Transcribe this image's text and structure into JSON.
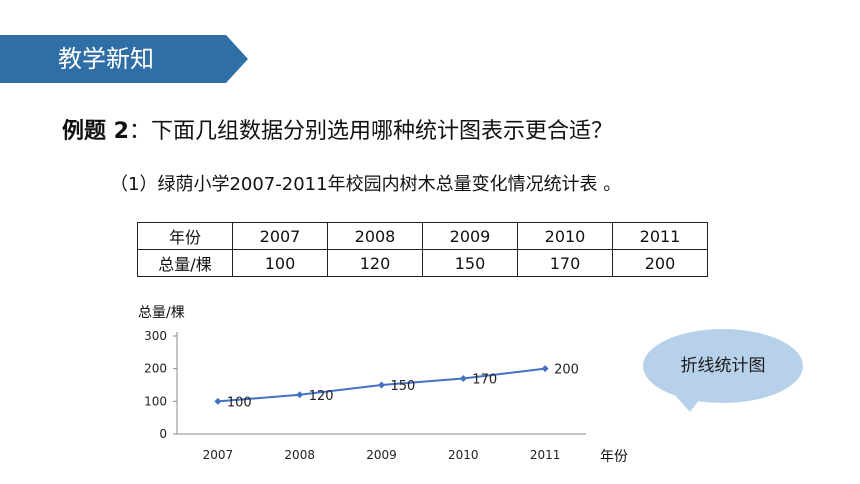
{
  "banner": {
    "title": "教学新知"
  },
  "question": {
    "label": "例题 2",
    "separator": "：",
    "text": "下面几组数据分别选用哪种统计图表示更合适？"
  },
  "sub_question": "（1）绿荫小学2007-2011年校园内树木总量变化情况统计表 。",
  "table": {
    "header_label": "年份",
    "row_label": "总量/棵",
    "years": [
      "2007",
      "2008",
      "2009",
      "2010",
      "2011"
    ],
    "values": [
      "100",
      "120",
      "150",
      "170",
      "200"
    ]
  },
  "chart_data": {
    "type": "line",
    "ylabel": "总量/棵",
    "xlabel": "年份",
    "categories": [
      "2007",
      "2008",
      "2009",
      "2010",
      "2011"
    ],
    "values": [
      100,
      120,
      150,
      170,
      200
    ],
    "ylim": [
      0,
      300
    ],
    "yticks": [
      0,
      100,
      200,
      300
    ],
    "grid": false,
    "line_color": "#4472c4"
  },
  "callout": {
    "text": "折线统计图",
    "fill": "#b8d1ea"
  },
  "colors": {
    "banner": "#2f6fa5"
  }
}
